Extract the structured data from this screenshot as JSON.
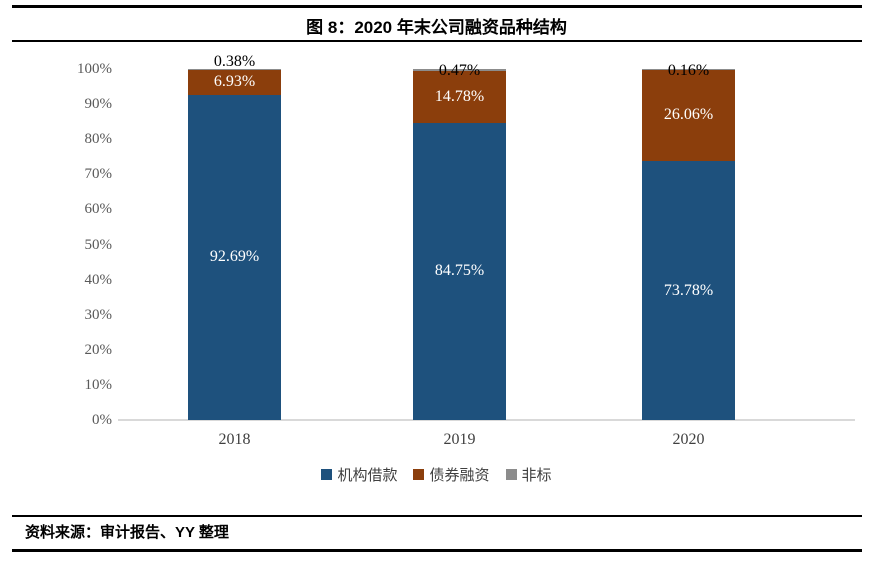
{
  "header": {
    "title": "图 8：2020 年末公司融资品种结构"
  },
  "footer": {
    "source": "资料来源：审计报告、YY 整理"
  },
  "chart_data": {
    "type": "bar",
    "stacked": true,
    "title": "图 8：2020 年末公司融资品种结构",
    "categories": [
      "2018",
      "2019",
      "2020"
    ],
    "series": [
      {
        "name": "机构借款",
        "color": "#1E517D",
        "label_color": "#ffffff",
        "values": [
          92.69,
          84.75,
          73.78
        ],
        "labels": [
          "92.69%",
          "84.75%",
          "73.78%"
        ]
      },
      {
        "name": "债券融资",
        "color": "#8B3E0C",
        "label_color": "#ffffff",
        "values": [
          6.93,
          14.78,
          26.06
        ],
        "labels": [
          "6.93%",
          "14.78%",
          "26.06%"
        ]
      },
      {
        "name": "非标",
        "color": "#8C8C8C",
        "label_color": "#000000",
        "values": [
          0.38,
          0.47,
          0.16
        ],
        "labels": [
          "0.38%",
          "0.47%",
          "0.16%"
        ]
      }
    ],
    "y_ticks": [
      "0%",
      "10%",
      "20%",
      "30%",
      "40%",
      "50%",
      "60%",
      "70%",
      "80%",
      "90%",
      "100%"
    ],
    "ylim": [
      0,
      100
    ],
    "grid": false,
    "legend_position": "bottom",
    "axis_color": "#d9d9d9",
    "tick_label_color": "#595959"
  }
}
